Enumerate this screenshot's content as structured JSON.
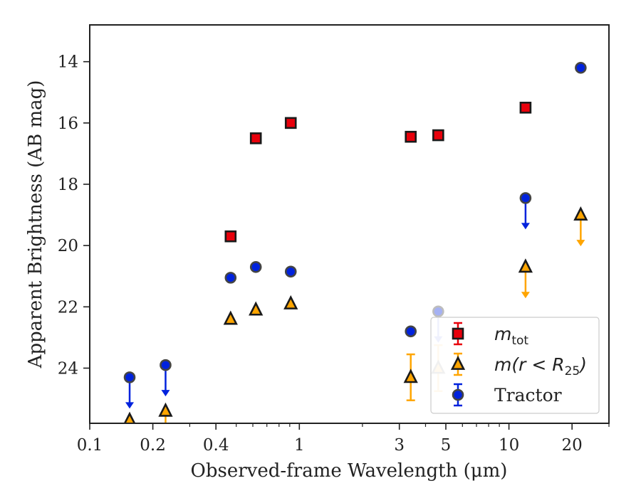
{
  "chart_data": {
    "type": "scatter",
    "xlabel": "Observed-frame Wavelength (μm)",
    "ylabel": "Apparent Brightness (AB mag)",
    "x_scale": "log",
    "xlim": [
      0.1,
      30
    ],
    "ylim": [
      25.8,
      12.8
    ],
    "y_inverted": true,
    "x_ticks": [
      {
        "value": 0.1,
        "label": "0.1"
      },
      {
        "value": 0.2,
        "label": "0.2"
      },
      {
        "value": 0.4,
        "label": "0.4"
      },
      {
        "value": 1,
        "label": "1"
      },
      {
        "value": 3,
        "label": "3"
      },
      {
        "value": 5,
        "label": "5"
      },
      {
        "value": 10,
        "label": "10"
      },
      {
        "value": 20,
        "label": "20"
      }
    ],
    "x_minor_ticks": [
      0.3,
      0.5,
      0.6,
      0.7,
      0.8,
      0.9,
      2,
      4,
      6,
      7,
      8,
      9,
      30
    ],
    "y_ticks": [
      {
        "value": 14,
        "label": "14"
      },
      {
        "value": 16,
        "label": "16"
      },
      {
        "value": 18,
        "label": "18"
      },
      {
        "value": 20,
        "label": "20"
      },
      {
        "value": 22,
        "label": "22"
      },
      {
        "value": 24,
        "label": "24"
      }
    ],
    "grid": false,
    "legend_position": "lower-right",
    "series": [
      {
        "name": "m_tot",
        "label_base": "m",
        "label_sub": "tot",
        "marker": "square",
        "color": "#e8000b",
        "edge_color": "#1a1a1a",
        "points": [
          {
            "x": 0.47,
            "y": 19.7
          },
          {
            "x": 0.62,
            "y": 16.5
          },
          {
            "x": 0.91,
            "y": 16.0
          },
          {
            "x": 3.4,
            "y": 16.45
          },
          {
            "x": 4.6,
            "y": 16.4
          },
          {
            "x": 12.0,
            "y": 15.5
          }
        ]
      },
      {
        "name": "m(r < R_25)",
        "label_base": "m(r < R",
        "label_sub": "25",
        "label_tail": ")",
        "marker": "triangle",
        "color": "#ffa500",
        "edge_color": "#1a1a1a",
        "points": [
          {
            "x": 0.155,
            "y": 25.7,
            "upper_limit": true
          },
          {
            "x": 0.23,
            "y": 25.4,
            "upper_limit": true
          },
          {
            "x": 0.47,
            "y": 22.4
          },
          {
            "x": 0.62,
            "y": 22.1
          },
          {
            "x": 0.91,
            "y": 21.9
          },
          {
            "x": 3.4,
            "y": 24.3,
            "yerr": 0.75
          },
          {
            "x": 4.6,
            "y": 24.0,
            "yerr": 0.75,
            "faded": true
          },
          {
            "x": 12.0,
            "y": 20.7,
            "upper_limit": true
          },
          {
            "x": 22.0,
            "y": 19.0,
            "upper_limit": true
          }
        ]
      },
      {
        "name": "Tractor",
        "label_base": "Tractor",
        "marker": "circle",
        "color": "#0022dd",
        "edge_color": "#444444",
        "points": [
          {
            "x": 0.155,
            "y": 24.3,
            "upper_limit": true
          },
          {
            "x": 0.23,
            "y": 23.9,
            "upper_limit": true
          },
          {
            "x": 0.47,
            "y": 21.05
          },
          {
            "x": 0.62,
            "y": 20.7
          },
          {
            "x": 0.91,
            "y": 20.85
          },
          {
            "x": 3.4,
            "y": 22.8
          },
          {
            "x": 4.6,
            "y": 22.15,
            "upper_limit": true,
            "faded": true
          },
          {
            "x": 12.0,
            "y": 18.45,
            "upper_limit": true
          },
          {
            "x": 22.0,
            "y": 14.2
          }
        ]
      }
    ]
  }
}
